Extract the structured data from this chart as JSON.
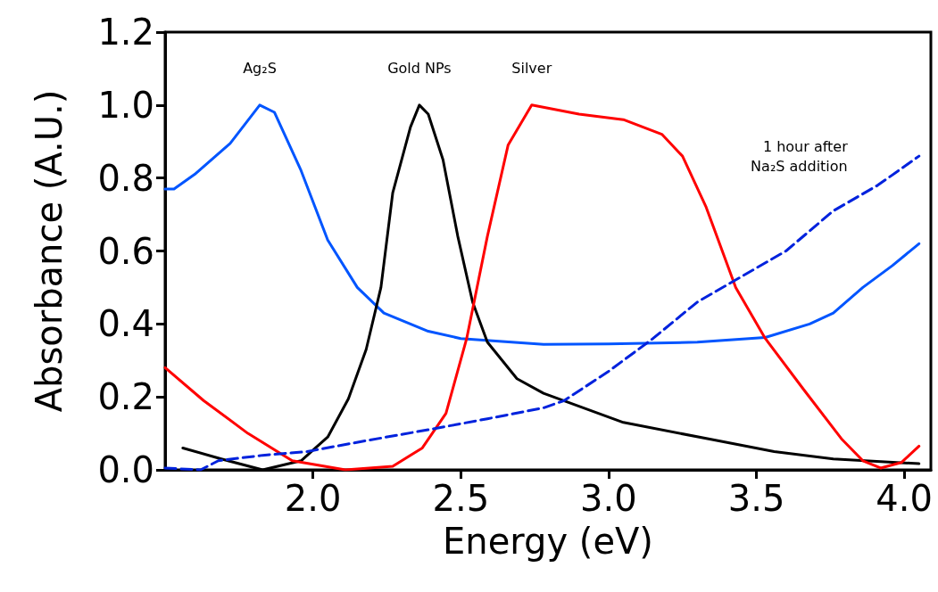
{
  "chart_data": {
    "type": "line",
    "xlabel": "Energy (eV)",
    "ylabel": "Absorbance (A.U.)",
    "xlim": [
      1.5,
      4.09
    ],
    "xticks": [
      {
        "value": 2,
        "label": "2.0"
      },
      {
        "value": 2.5,
        "label": "2.5"
      },
      {
        "value": 3,
        "label": "3.0"
      },
      {
        "value": 3.5,
        "label": "3.5"
      },
      {
        "value": 4,
        "label": "4.0"
      }
    ],
    "ylim": [
      0,
      1.2
    ],
    "yticks": [
      {
        "value": 0,
        "label": "0.0"
      },
      {
        "value": 0.2,
        "label": "0.2"
      },
      {
        "value": 0.4,
        "label": "0.4"
      },
      {
        "value": 0.6,
        "label": "0.6"
      },
      {
        "value": 0.8,
        "label": "0.8"
      },
      {
        "value": 1,
        "label": "1.0"
      },
      {
        "value": 1.2,
        "label": "1.2"
      }
    ],
    "grid": false,
    "legend": false,
    "marker": "none",
    "line_style": "solid",
    "series": [
      {
        "name": "Ag₂S",
        "color": "#0055ff",
        "x": [
          1.5,
          1.53,
          1.6,
          1.72,
          1.82,
          1.87,
          1.96,
          2.05,
          2.15,
          2.24,
          2.39,
          2.5,
          2.78,
          3.0,
          3.3,
          3.53,
          3.68,
          3.76,
          3.86,
          3.96,
          4.05
        ],
        "values": [
          0.77,
          0.77,
          0.81,
          0.895,
          1.0,
          0.98,
          0.82,
          0.63,
          0.5,
          0.43,
          0.38,
          0.36,
          0.344,
          0.345,
          0.35,
          0.363,
          0.4,
          0.43,
          0.5,
          0.56,
          0.62
        ]
      },
      {
        "name": "Gold NPs",
        "color": "#000000",
        "x": [
          1.56,
          1.69,
          1.83,
          1.96,
          2.05,
          2.12,
          2.18,
          2.23,
          2.27,
          2.33,
          2.36,
          2.39,
          2.44,
          2.49,
          2.54,
          2.59,
          2.69,
          2.78,
          3.05,
          3.35,
          3.56,
          3.76,
          4.05
        ],
        "values": [
          0.06,
          0.03,
          0.0,
          0.025,
          0.09,
          0.195,
          0.33,
          0.5,
          0.76,
          0.94,
          1.0,
          0.975,
          0.85,
          0.64,
          0.46,
          0.35,
          0.25,
          0.21,
          0.13,
          0.083,
          0.05,
          0.03,
          0.017
        ]
      },
      {
        "name": "Silver",
        "color": "#ff0000",
        "x": [
          1.5,
          1.63,
          1.78,
          1.93,
          2.11,
          2.27,
          2.37,
          2.45,
          2.52,
          2.59,
          2.66,
          2.74,
          2.9,
          3.05,
          3.18,
          3.25,
          3.33,
          3.43,
          3.53,
          3.66,
          3.79,
          3.86,
          3.92,
          3.99,
          4.05
        ],
        "values": [
          0.28,
          0.19,
          0.1,
          0.025,
          0.0,
          0.01,
          0.06,
          0.155,
          0.36,
          0.64,
          0.89,
          1.0,
          0.975,
          0.96,
          0.92,
          0.86,
          0.72,
          0.5,
          0.36,
          0.22,
          0.083,
          0.025,
          0.005,
          0.02,
          0.065
        ]
      },
      {
        "name": "1 hour after Na₂S addition",
        "color": "#0022dd",
        "line_style": "dashed",
        "x": [
          1.5,
          1.62,
          1.68,
          1.83,
          1.98,
          2.18,
          2.39,
          2.59,
          2.78,
          2.85,
          3.0,
          3.15,
          3.3,
          3.45,
          3.6,
          3.76,
          3.91,
          4.05
        ],
        "values": [
          0.005,
          0.0,
          0.025,
          0.04,
          0.05,
          0.08,
          0.11,
          0.14,
          0.17,
          0.19,
          0.27,
          0.36,
          0.46,
          0.53,
          0.6,
          0.71,
          0.78,
          0.86
        ]
      }
    ]
  }
}
